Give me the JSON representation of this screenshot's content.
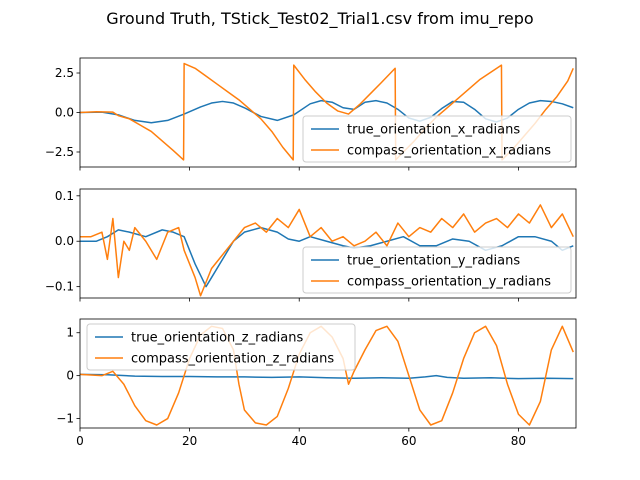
{
  "chart_data": {
    "title": "Ground Truth, TStick_Test02_Trial1.csv from imu_repo",
    "type": "line",
    "x_range": [
      0,
      90.5
    ],
    "x_ticks": [
      "0",
      "20",
      "40",
      "60",
      "80"
    ],
    "colors": {
      "true": "#1f77b4",
      "compass": "#ff7f0e"
    },
    "subplots": [
      {
        "ylim": [
          -3.45,
          3.45
        ],
        "y_ticks": [
          "2.5",
          "0.0",
          "−2.5"
        ],
        "y_tick_values": [
          2.5,
          0.0,
          -2.5
        ],
        "legend_position": "lower-right",
        "series": [
          {
            "name": "true_orientation_x_radians",
            "color": "#1f77b4",
            "x": [
              0,
              4,
              7,
              10,
              13,
              16,
              19,
              22,
              24,
              26,
              28,
              30,
              33,
              36,
              39,
              42,
              44,
              46,
              48,
              50,
              52,
              54,
              56,
              58,
              60,
              62,
              64,
              66,
              68,
              70,
              72,
              74,
              76,
              78,
              80,
              82,
              84,
              86,
              88,
              90
            ],
            "y": [
              0,
              0.02,
              -0.15,
              -0.5,
              -0.65,
              -0.5,
              -0.1,
              0.35,
              0.6,
              0.7,
              0.6,
              0.3,
              -0.25,
              -0.5,
              -0.15,
              0.55,
              0.75,
              0.65,
              0.3,
              0.2,
              0.65,
              0.75,
              0.6,
              0.2,
              -0.35,
              -0.55,
              -0.3,
              0.25,
              0.7,
              0.65,
              0.2,
              -0.4,
              -0.6,
              -0.35,
              0.2,
              0.6,
              0.75,
              0.7,
              0.55,
              0.3
            ]
          },
          {
            "name": "compass_orientation_x_radians",
            "color": "#ff7f0e",
            "x": [
              0,
              3,
              6,
              7,
              9,
              11,
              13,
              15,
              17,
              18.9,
              19,
              21,
              23,
              25,
              27,
              29,
              31,
              33,
              35,
              37,
              38.9,
              39,
              41,
              43,
              45,
              47,
              49,
              51,
              53,
              55,
              57.5,
              57.6,
              59,
              61,
              63,
              65,
              67,
              69,
              71,
              73,
              76.9,
              77,
              79,
              81,
              83,
              85,
              87,
              89,
              90
            ],
            "y": [
              0,
              0.05,
              0.02,
              -0.2,
              -0.4,
              -0.8,
              -1.2,
              -1.8,
              -2.4,
              -3.0,
              3.1,
              2.8,
              2.3,
              1.8,
              1.3,
              0.8,
              0.2,
              -0.4,
              -1.2,
              -2.2,
              -3.0,
              3.0,
              2.1,
              1.3,
              0.6,
              0.1,
              -0.1,
              0.5,
              1.2,
              1.9,
              2.8,
              -3.0,
              -2.5,
              -1.8,
              -1.0,
              -0.3,
              0.3,
              0.9,
              1.5,
              2.1,
              3.0,
              -3.0,
              -2.3,
              -1.5,
              -0.7,
              0.2,
              1.0,
              2.0,
              2.8
            ]
          }
        ]
      },
      {
        "ylim": [
          -0.125,
          0.115
        ],
        "y_ticks": [
          "0.1",
          "0.0",
          "−0.1"
        ],
        "y_tick_values": [
          0.1,
          0.0,
          -0.1
        ],
        "legend_position": "lower-right",
        "series": [
          {
            "name": "true_orientation_y_radians",
            "color": "#1f77b4",
            "x": [
              0,
              3,
              5,
              7,
              9,
              12,
              15,
              17,
              19,
              21,
              23,
              24,
              26,
              28,
              30,
              33,
              36,
              38,
              40,
              42,
              45,
              48,
              50,
              53,
              56,
              59,
              62,
              65,
              68,
              71,
              74,
              77,
              80,
              83,
              86,
              88,
              90
            ],
            "y": [
              0,
              0,
              0.01,
              0.025,
              0.02,
              0.01,
              0.025,
              0.02,
              0.01,
              -0.05,
              -0.1,
              -0.08,
              -0.04,
              0,
              0.02,
              0.03,
              0.02,
              0.005,
              0,
              0.01,
              0,
              -0.01,
              -0.015,
              -0.01,
              0,
              0.01,
              -0.01,
              -0.01,
              0.005,
              0,
              -0.02,
              -0.01,
              0.01,
              0.01,
              0,
              -0.02,
              -0.01
            ]
          },
          {
            "name": "compass_orientation_y_radians",
            "color": "#ff7f0e",
            "x": [
              0,
              2,
              4,
              5,
              6,
              7,
              8,
              9,
              10,
              12,
              14,
              16,
              18,
              19,
              20,
              21,
              22,
              23,
              24,
              26,
              28,
              30,
              32,
              34,
              36,
              38,
              40,
              42,
              44,
              46,
              48,
              50,
              52,
              54,
              56,
              58,
              60,
              62,
              64,
              66,
              68,
              70,
              72,
              74,
              76,
              78,
              80,
              82,
              84,
              86,
              88,
              90
            ],
            "y": [
              0.01,
              0.01,
              0.02,
              -0.04,
              0.05,
              -0.08,
              0.0,
              -0.02,
              0.03,
              0.0,
              -0.04,
              0.02,
              0.03,
              -0.02,
              -0.05,
              -0.08,
              -0.12,
              -0.09,
              -0.06,
              -0.03,
              0.0,
              0.03,
              0.04,
              0.02,
              0.05,
              0.03,
              0.07,
              0.01,
              0.03,
              0.0,
              0.01,
              -0.01,
              0.0,
              0.02,
              -0.01,
              0.04,
              0.01,
              0.03,
              0.02,
              0.05,
              0.03,
              0.06,
              0.02,
              0.04,
              0.05,
              0.03,
              0.06,
              0.04,
              0.08,
              0.03,
              0.06,
              0.01
            ]
          }
        ]
      },
      {
        "ylim": [
          -1.22,
          1.32
        ],
        "y_ticks": [
          "1",
          "0",
          "−1"
        ],
        "y_tick_values": [
          1,
          0,
          -1
        ],
        "legend_position": "upper-left",
        "series": [
          {
            "name": "true_orientation_z_radians",
            "color": "#1f77b4",
            "x": [
              0,
              5,
              10,
              15,
              20,
              25,
              30,
              35,
              40,
              45,
              50,
              55,
              60,
              63,
              65,
              67,
              70,
              75,
              80,
              85,
              90
            ],
            "y": [
              0.03,
              0.02,
              -0.01,
              -0.02,
              -0.02,
              -0.03,
              -0.03,
              -0.04,
              -0.03,
              -0.05,
              -0.06,
              -0.05,
              -0.06,
              -0.03,
              0,
              -0.04,
              -0.06,
              -0.05,
              -0.07,
              -0.06,
              -0.07
            ]
          },
          {
            "name": "compass_orientation_z_radians",
            "color": "#ff7f0e",
            "x": [
              0,
              4,
              6,
              8,
              10,
              12,
              14,
              16,
              18,
              20,
              22,
              24,
              26,
              28,
              29,
              30,
              32,
              34,
              36,
              38,
              40,
              42,
              44,
              46,
              48,
              49,
              50,
              52,
              54,
              56,
              58,
              60,
              62,
              64,
              66,
              68,
              70,
              72,
              74,
              76,
              78,
              80,
              82,
              84,
              86,
              88,
              90
            ],
            "y": [
              0.03,
              0.0,
              0.1,
              -0.2,
              -0.7,
              -1.05,
              -1.15,
              -1.0,
              -0.4,
              0.4,
              0.95,
              1.15,
              1.1,
              0.6,
              -0.2,
              -0.8,
              -1.1,
              -1.15,
              -0.95,
              -0.3,
              0.5,
              1.0,
              1.15,
              0.9,
              0.4,
              -0.2,
              0.1,
              0.6,
              1.05,
              1.15,
              0.8,
              0.0,
              -0.8,
              -1.15,
              -1.05,
              -0.4,
              0.4,
              1.0,
              1.15,
              0.7,
              -0.2,
              -0.9,
              -1.15,
              -0.6,
              0.6,
              1.15,
              0.55
            ]
          }
        ]
      }
    ]
  }
}
